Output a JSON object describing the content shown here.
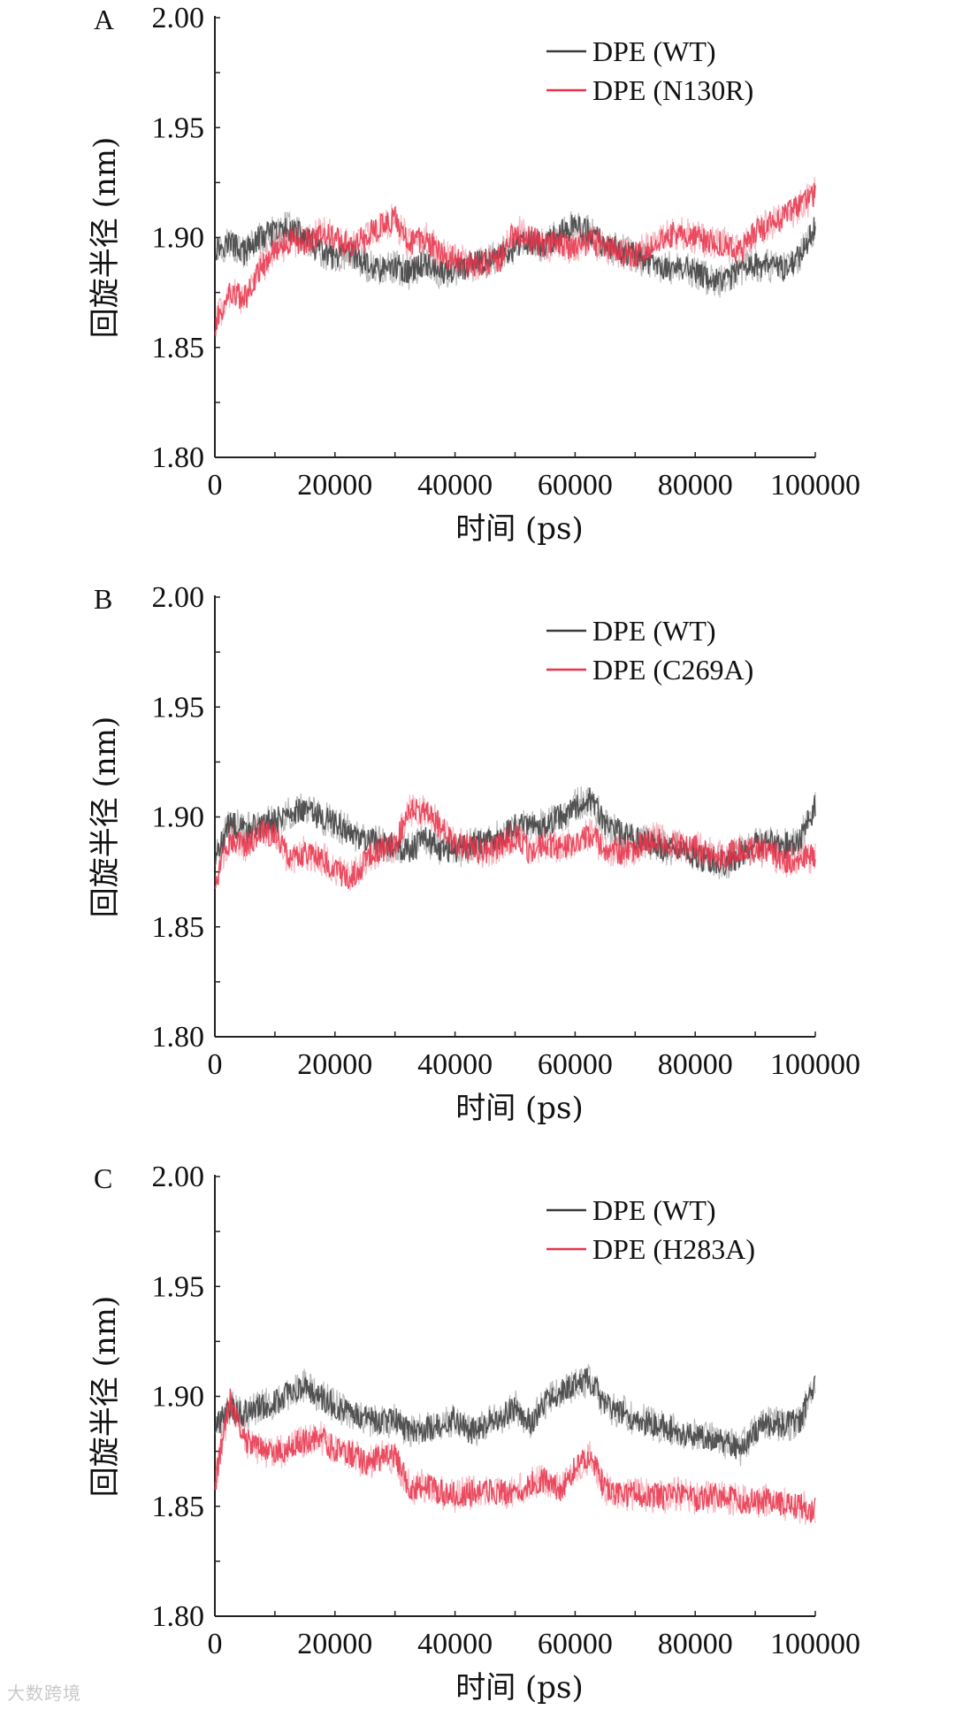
{
  "chart_data": [
    {
      "type": "line",
      "panel_label": "A",
      "xlabel": "时间 (ps)",
      "ylabel": "回旋半径 (nm)",
      "xlim": [
        0,
        100000
      ],
      "ylim": [
        1.8,
        2.0
      ],
      "xticks": [
        "0",
        "20000",
        "40000",
        "60000",
        "80000",
        "100000"
      ],
      "yticks": [
        "1.80",
        "1.85",
        "1.90",
        "1.95",
        "2.00"
      ],
      "legend_position": "top-right",
      "series": [
        {
          "name": "DPE (WT)",
          "color": "#3a3a3a",
          "x": [
            0,
            2500,
            5000,
            7500,
            10000,
            12500,
            15000,
            17500,
            20000,
            22500,
            25000,
            27500,
            30000,
            32500,
            35000,
            37500,
            40000,
            42500,
            45000,
            47500,
            50000,
            52500,
            55000,
            57500,
            60000,
            62500,
            65000,
            67500,
            70000,
            72500,
            75000,
            77500,
            80000,
            82500,
            85000,
            87500,
            90000,
            92500,
            95000,
            97500,
            100000
          ],
          "y": [
            1.895,
            1.898,
            1.893,
            1.9,
            1.902,
            1.904,
            1.9,
            1.894,
            1.89,
            1.893,
            1.888,
            1.885,
            1.887,
            1.884,
            1.889,
            1.884,
            1.885,
            1.887,
            1.889,
            1.892,
            1.895,
            1.898,
            1.896,
            1.902,
            1.905,
            1.902,
            1.896,
            1.894,
            1.892,
            1.888,
            1.886,
            1.887,
            1.884,
            1.881,
            1.88,
            1.885,
            1.888,
            1.887,
            1.886,
            1.892,
            1.905
          ]
        },
        {
          "name": "DPE (N130R)",
          "color": "#e8334a",
          "x": [
            0,
            2500,
            5000,
            7500,
            10000,
            12500,
            15000,
            17500,
            20000,
            22500,
            25000,
            27500,
            30000,
            32500,
            35000,
            37500,
            40000,
            42500,
            45000,
            47500,
            50000,
            52500,
            55000,
            57500,
            60000,
            62500,
            65000,
            67500,
            70000,
            72500,
            75000,
            77500,
            80000,
            82500,
            85000,
            87500,
            90000,
            92500,
            95000,
            97500,
            100000
          ],
          "y": [
            1.86,
            1.875,
            1.872,
            1.885,
            1.895,
            1.898,
            1.898,
            1.902,
            1.9,
            1.896,
            1.9,
            1.905,
            1.908,
            1.897,
            1.9,
            1.892,
            1.89,
            1.888,
            1.889,
            1.89,
            1.903,
            1.9,
            1.896,
            1.897,
            1.895,
            1.898,
            1.896,
            1.893,
            1.892,
            1.896,
            1.9,
            1.903,
            1.9,
            1.898,
            1.897,
            1.893,
            1.902,
            1.906,
            1.91,
            1.914,
            1.92
          ]
        }
      ]
    },
    {
      "type": "line",
      "panel_label": "B",
      "xlabel": "时间 (ps)",
      "ylabel": "回旋半径 (nm)",
      "xlim": [
        0,
        100000
      ],
      "ylim": [
        1.8,
        2.0
      ],
      "xticks": [
        "0",
        "20000",
        "40000",
        "60000",
        "80000",
        "100000"
      ],
      "yticks": [
        "1.80",
        "1.85",
        "1.90",
        "1.95",
        "2.00"
      ],
      "legend_position": "top-right",
      "series": [
        {
          "name": "DPE (WT)",
          "color": "#3a3a3a",
          "x": [
            0,
            2500,
            5000,
            7500,
            10000,
            12500,
            15000,
            17500,
            20000,
            22500,
            25000,
            27500,
            30000,
            32500,
            35000,
            37500,
            40000,
            42500,
            45000,
            47500,
            50000,
            52500,
            55000,
            57500,
            60000,
            62500,
            65000,
            67500,
            70000,
            72500,
            75000,
            77500,
            80000,
            82500,
            85000,
            87500,
            90000,
            92500,
            95000,
            97500,
            100000
          ],
          "y": [
            1.88,
            1.897,
            1.894,
            1.896,
            1.898,
            1.902,
            1.904,
            1.9,
            1.897,
            1.893,
            1.89,
            1.888,
            1.887,
            1.885,
            1.89,
            1.886,
            1.884,
            1.887,
            1.889,
            1.891,
            1.896,
            1.895,
            1.896,
            1.9,
            1.905,
            1.908,
            1.897,
            1.893,
            1.89,
            1.888,
            1.886,
            1.885,
            1.882,
            1.88,
            1.879,
            1.883,
            1.887,
            1.888,
            1.887,
            1.89,
            1.905
          ]
        },
        {
          "name": "DPE (C269A)",
          "color": "#e8334a",
          "x": [
            0,
            2500,
            5000,
            7500,
            10000,
            12500,
            15000,
            17500,
            20000,
            22500,
            25000,
            27500,
            30000,
            32500,
            35000,
            37500,
            40000,
            42500,
            45000,
            47500,
            50000,
            52500,
            55000,
            57500,
            60000,
            62500,
            65000,
            67500,
            70000,
            72500,
            75000,
            77500,
            80000,
            82500,
            85000,
            87500,
            90000,
            92500,
            95000,
            97500,
            100000
          ],
          "y": [
            1.87,
            1.89,
            1.887,
            1.893,
            1.892,
            1.88,
            1.884,
            1.882,
            1.875,
            1.872,
            1.88,
            1.885,
            1.887,
            1.903,
            1.902,
            1.896,
            1.888,
            1.886,
            1.884,
            1.887,
            1.891,
            1.884,
            1.888,
            1.886,
            1.889,
            1.892,
            1.885,
            1.884,
            1.886,
            1.89,
            1.889,
            1.887,
            1.886,
            1.883,
            1.882,
            1.886,
            1.885,
            1.884,
            1.88,
            1.882,
            1.882
          ]
        }
      ]
    },
    {
      "type": "line",
      "panel_label": "C",
      "xlabel": "时间 (ps)",
      "ylabel": "回旋半径 (nm)",
      "xlim": [
        0,
        100000
      ],
      "ylim": [
        1.8,
        2.0
      ],
      "xticks": [
        "0",
        "20000",
        "40000",
        "60000",
        "80000",
        "100000"
      ],
      "yticks": [
        "1.80",
        "1.85",
        "1.90",
        "1.95",
        "2.00"
      ],
      "legend_position": "top-right",
      "series": [
        {
          "name": "DPE (WT)",
          "color": "#3a3a3a",
          "x": [
            0,
            2500,
            5000,
            7500,
            10000,
            12500,
            15000,
            17500,
            20000,
            22500,
            25000,
            27500,
            30000,
            32500,
            35000,
            37500,
            40000,
            42500,
            45000,
            47500,
            50000,
            52500,
            55000,
            57500,
            60000,
            62500,
            65000,
            67500,
            70000,
            72500,
            75000,
            77500,
            80000,
            82500,
            85000,
            87500,
            90000,
            92500,
            95000,
            97500,
            100000
          ],
          "y": [
            1.885,
            1.895,
            1.892,
            1.895,
            1.897,
            1.902,
            1.905,
            1.9,
            1.896,
            1.893,
            1.89,
            1.888,
            1.889,
            1.884,
            1.885,
            1.887,
            1.89,
            1.884,
            1.887,
            1.89,
            1.895,
            1.888,
            1.897,
            1.902,
            1.905,
            1.908,
            1.896,
            1.893,
            1.89,
            1.888,
            1.886,
            1.884,
            1.882,
            1.881,
            1.879,
            1.876,
            1.885,
            1.888,
            1.887,
            1.889,
            1.907
          ]
        },
        {
          "name": "DPE (H283A)",
          "color": "#e8334a",
          "x": [
            0,
            2500,
            5000,
            7500,
            10000,
            12500,
            15000,
            17500,
            20000,
            22500,
            25000,
            27500,
            30000,
            32500,
            35000,
            37500,
            40000,
            42500,
            45000,
            47500,
            50000,
            52500,
            55000,
            57500,
            60000,
            62500,
            65000,
            67500,
            70000,
            72500,
            75000,
            77500,
            80000,
            82500,
            85000,
            87500,
            90000,
            92500,
            95000,
            97500,
            100000
          ],
          "y": [
            1.86,
            1.898,
            1.88,
            1.876,
            1.874,
            1.877,
            1.88,
            1.881,
            1.876,
            1.874,
            1.87,
            1.872,
            1.873,
            1.858,
            1.86,
            1.856,
            1.855,
            1.856,
            1.857,
            1.856,
            1.857,
            1.86,
            1.862,
            1.858,
            1.868,
            1.872,
            1.858,
            1.855,
            1.856,
            1.855,
            1.854,
            1.856,
            1.853,
            1.855,
            1.854,
            1.853,
            1.852,
            1.853,
            1.851,
            1.85,
            1.848
          ]
        }
      ]
    }
  ],
  "watermark": "大数跨境"
}
